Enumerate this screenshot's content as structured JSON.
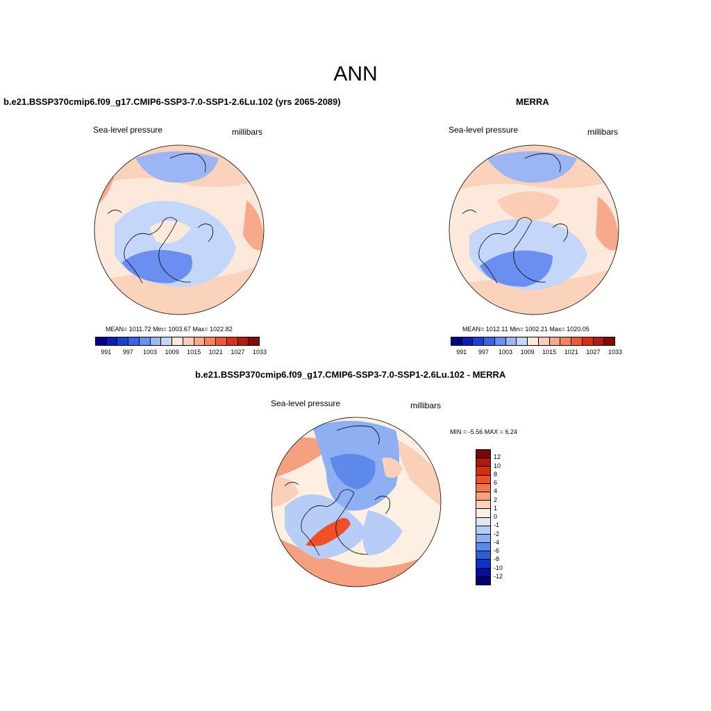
{
  "figure": {
    "title": "ANN"
  },
  "panel_model": {
    "title": "b.e21.BSSP370cmip6.f09_g17.CMIP6-SSP3-7.0-SSP1-2.6Lu.102 (yrs 2065-2089)",
    "left_label": "Sea-level pressure",
    "right_label": "millibars",
    "stats": "MEAN= 1011.72  Min= 1003.67  Max= 1022.82"
  },
  "panel_obs": {
    "title": "MERRA",
    "left_label": "Sea-level pressure",
    "right_label": "millibars",
    "stats": "MEAN= 1012.11  Min= 1002.21  Max= 1020.05"
  },
  "panel_diff": {
    "title": "b.e21.BSSP370cmip6.f09_g17.CMIP6-SSP3-7.0-SSP1-2.6Lu.102 - MERRA",
    "left_label": "Sea-level pressure",
    "right_label": "millibars",
    "minmax": "MIN =  -5.56 MAX =   6.24"
  },
  "colorbar_abs": {
    "colors": [
      "#00008b",
      "#0a1fb0",
      "#1e3fd4",
      "#3c63e6",
      "#6b8ff0",
      "#9cb6f5",
      "#c4d6fa",
      "#fde9dc",
      "#fbcdb6",
      "#f8a98c",
      "#f4845f",
      "#ee5a35",
      "#d9301a",
      "#b01c10",
      "#830a0a"
    ],
    "labels": [
      "991",
      "997",
      "1003",
      "1009",
      "1015",
      "1021",
      "1027",
      "1033"
    ]
  },
  "colorbar_diff": {
    "colors": [
      "#7b0606",
      "#aa1b0d",
      "#d4300f",
      "#f05028",
      "#f47650",
      "#f5a081",
      "#fbd0bb",
      "#fdf0e3",
      "#dde9fb",
      "#b7cdf7",
      "#8eaff1",
      "#5d89ea",
      "#2c5ede",
      "#1030c8",
      "#00109a",
      "#000075"
    ],
    "labels": [
      "12",
      "10",
      "8",
      "6",
      "4",
      "2",
      "1",
      "0",
      "-1",
      "-2",
      "-4",
      "-6",
      "-8",
      "-10",
      "-12"
    ]
  }
}
